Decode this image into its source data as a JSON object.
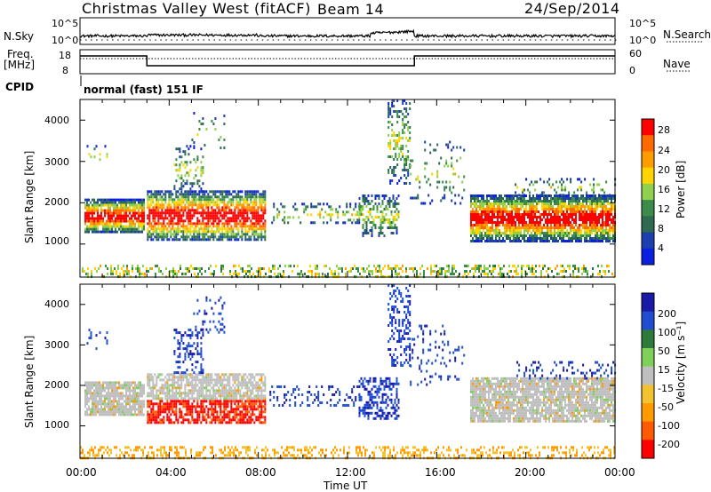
{
  "header": {
    "title": "Christmas Valley West (fitACF)",
    "beam": "Beam 14",
    "date": "24/Sep/2014"
  },
  "top_panels": {
    "nsky_label": "N.Sky",
    "nsearch_label": "N.Search",
    "freq_label_1": "Freq.",
    "freq_label_2": "[MHz]",
    "nave_label": "Nave",
    "cpid_label": "CPID",
    "cpid_value": "normal (fast) 151 IF",
    "noise_ticks_left": [
      "10^5",
      "10^0"
    ],
    "noise_ticks_right": [
      "10^5",
      "10^0"
    ],
    "freq_ticks_left": [
      "18",
      "8"
    ],
    "nave_ticks_right": [
      "60",
      "0"
    ]
  },
  "colors": {
    "power_scale": [
      "#0a1fe0",
      "#1c3fb0",
      "#2d6a4f",
      "#3b8b4a",
      "#8fd14f",
      "#ffd400",
      "#ff9d00",
      "#ff6a00",
      "#ff0000"
    ],
    "velocity_scale": [
      "#1a1aa8",
      "#1f4fd0",
      "#2d7a3a",
      "#7fd05a",
      "#bfbfbf",
      "#f2c230",
      "#ff9a00",
      "#ff5a00",
      "#ff0000"
    ]
  },
  "chart_data": [
    {
      "type": "heatmap",
      "name": "power_panel",
      "ylabel": "Slant Range [km]",
      "xlabel": "",
      "ylim": [
        200,
        4500
      ],
      "y_ticks": [
        "1000",
        "2000",
        "3000",
        "4000"
      ],
      "x_range_hours": [
        0,
        24
      ],
      "colorbar_label": "Power [dB]",
      "colorbar_ticks": [
        "4",
        "8",
        "12",
        "16",
        "20",
        "24",
        "28"
      ],
      "grid": false
    },
    {
      "type": "heatmap",
      "name": "velocity_panel",
      "ylabel": "Slant Range [km]",
      "xlabel": "Time UT",
      "ylim": [
        200,
        4500
      ],
      "y_ticks": [
        "1000",
        "2000",
        "3000",
        "4000"
      ],
      "x_ticks": [
        "00:00",
        "04:00",
        "08:00",
        "12:00",
        "16:00",
        "20:00",
        "00:00"
      ],
      "x_range_hours": [
        0,
        24
      ],
      "colorbar_label": "Velocity [m s⁻¹]",
      "colorbar_ticks": [
        "200",
        "100",
        "50",
        "15",
        "-15",
        "-50",
        "-100",
        "-200"
      ],
      "grid": false
    }
  ]
}
